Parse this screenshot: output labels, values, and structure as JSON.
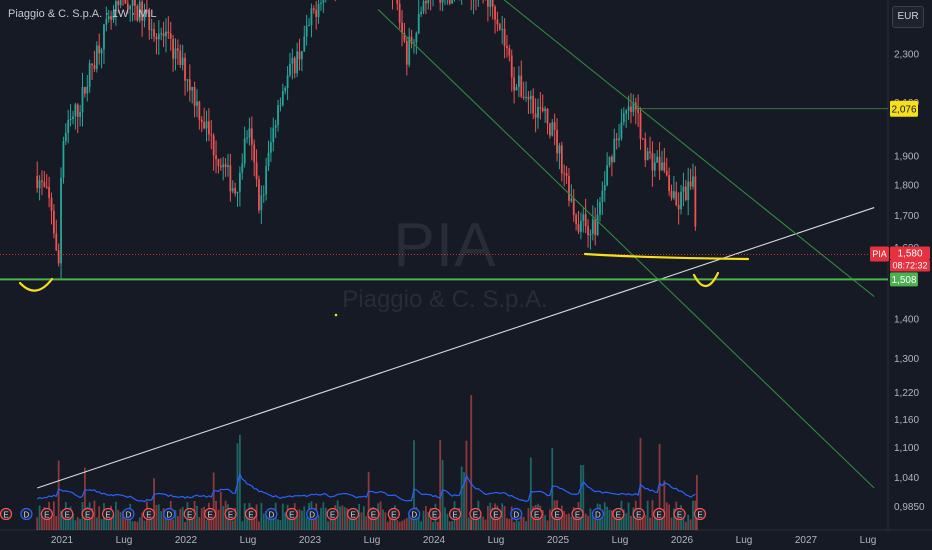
{
  "header": {
    "title": "Piaggio & C. S.p.A. · 1W · MIL",
    "currency": "EUR"
  },
  "watermark": {
    "symbol": "PIA",
    "name": "Piaggio & C. S.p.A."
  },
  "chart_data": {
    "type": "candlestick",
    "title": "Piaggio & C. S.p.A. · 1W · MIL",
    "currency": "EUR",
    "y_scale": "log",
    "y_ticks": [
      "2,300",
      "2,100",
      "1,900",
      "1,800",
      "1,700",
      "1,600",
      "1,400",
      "1,300",
      "1,220",
      "1,160",
      "1,100",
      "1,040",
      "0,9850"
    ],
    "y_tick_values": [
      2.3,
      2.1,
      1.9,
      1.8,
      1.7,
      1.6,
      1.4,
      1.3,
      1.22,
      1.16,
      1.1,
      1.04,
      0.985
    ],
    "x_ticks": [
      "2021",
      "Lug",
      "2022",
      "Lug",
      "2023",
      "Lug",
      "2024",
      "Lug",
      "2025",
      "Lug",
      "2026",
      "Lug",
      "2027",
      "Lug"
    ],
    "x_tick_dates": [
      2021.0,
      2021.5,
      2022.0,
      2022.5,
      2023.0,
      2023.5,
      2024.0,
      2024.5,
      2025.0,
      2025.5,
      2026.0,
      2026.5,
      2027.0,
      2027.5
    ],
    "price_labels": {
      "resistance": "2,076",
      "symbol": "PIA",
      "last": "1,580",
      "countdown": "08:72:32",
      "support": "1,508"
    },
    "price_levels": {
      "resistance": 2.076,
      "last": 1.58,
      "support": 1.508
    },
    "price_path": [
      [
        2020.8,
        1.83
      ],
      [
        2020.92,
        1.72
      ],
      [
        2020.97,
        1.508
      ],
      [
        2021.0,
        1.95
      ],
      [
        2021.15,
        2.1
      ],
      [
        2021.3,
        2.35
      ],
      [
        2021.5,
        2.55
      ],
      [
        2021.7,
        2.45
      ],
      [
        2021.85,
        2.35
      ],
      [
        2022.0,
        2.22
      ],
      [
        2022.1,
        2.08
      ],
      [
        2022.25,
        1.9
      ],
      [
        2022.4,
        1.78
      ],
      [
        2022.5,
        2.0
      ],
      [
        2022.6,
        1.72
      ],
      [
        2022.75,
        2.12
      ],
      [
        2022.95,
        2.35
      ],
      [
        2023.1,
        2.6
      ],
      [
        2023.25,
        2.7
      ],
      [
        2023.45,
        2.8
      ],
      [
        2023.65,
        2.65
      ],
      [
        2023.78,
        2.3
      ],
      [
        2023.95,
        2.6
      ],
      [
        2024.15,
        2.58
      ],
      [
        2024.35,
        2.6
      ],
      [
        2024.5,
        2.5
      ],
      [
        2024.65,
        2.18
      ],
      [
        2024.8,
        2.1
      ],
      [
        2024.95,
        2.0
      ],
      [
        2025.05,
        1.85
      ],
      [
        2025.15,
        1.68
      ],
      [
        2025.3,
        1.66
      ],
      [
        2025.45,
        1.95
      ],
      [
        2025.55,
        2.05
      ],
      [
        2025.62,
        2.076
      ],
      [
        2025.72,
        1.9
      ],
      [
        2025.85,
        1.86
      ],
      [
        2025.95,
        1.72
      ],
      [
        2026.03,
        1.78
      ],
      [
        2026.09,
        1.79
      ],
      [
        2026.12,
        1.58
      ]
    ],
    "volume_series": "Volume",
    "event_markers": [
      "E",
      "D",
      "E",
      "E",
      "E",
      "E",
      "D",
      "E",
      "D",
      "E",
      "E",
      "E",
      "E",
      "D",
      "E",
      "D",
      "E",
      "E",
      "E",
      "E",
      "D",
      "E",
      "E",
      "E",
      "E",
      "D",
      "E",
      "E",
      "E",
      "D",
      "E",
      "E",
      "E",
      "E",
      "E"
    ],
    "trendlines": [
      {
        "name": "ascending",
        "color": "#d8dbe2",
        "from": [
          2020.8,
          1.02
        ],
        "to": [
          2027.55,
          1.725
        ]
      },
      {
        "name": "channel-upper",
        "color": "#2e8b3d",
        "from": [
          2024.35,
          2.65
        ],
        "to": [
          2027.55,
          1.46
        ]
      },
      {
        "name": "channel-lower",
        "color": "#2e8b3d",
        "from": [
          2023.55,
          2.5
        ],
        "to": [
          2027.55,
          1.02
        ]
      }
    ],
    "colors": {
      "up": "#26a69a",
      "down": "#ef5350",
      "support": "#4caf50",
      "annotation": "#f7e01a",
      "resistance_label_bg": "#f7e01a",
      "last_label_bg": "#e5323e",
      "volume_ma": "#2962ff"
    },
    "grid": false,
    "legend": "none"
  }
}
